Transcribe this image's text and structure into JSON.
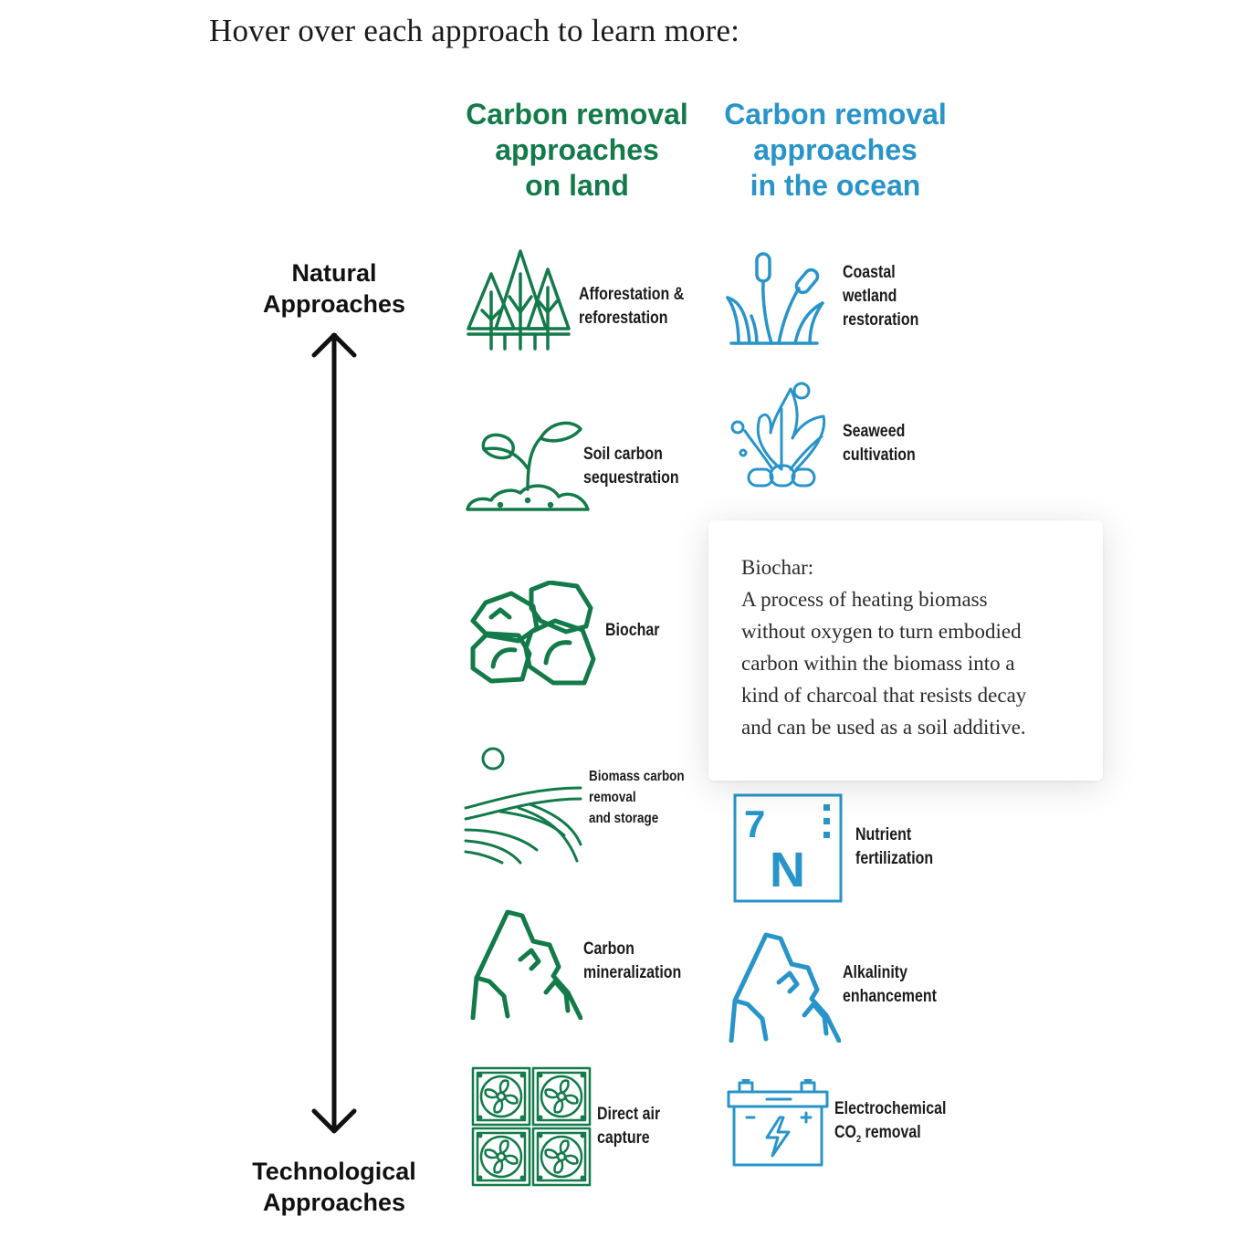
{
  "intro": "Hover over each approach to learn more:",
  "headers": {
    "land": [
      "Carbon removal",
      "approaches",
      "on land"
    ],
    "ocean": [
      "Carbon removal",
      "approaches",
      "in the ocean"
    ]
  },
  "axis": {
    "top": [
      "Natural",
      "Approaches"
    ],
    "bottom": [
      "Technological",
      "Approaches"
    ]
  },
  "colors": {
    "land": "#137a4a",
    "ocean": "#2894c9",
    "text": "#1b1b1b"
  },
  "land": [
    {
      "icon": "trees-icon",
      "label": [
        "Afforestation &",
        "reforestation"
      ]
    },
    {
      "icon": "sprout-icon",
      "label": [
        "Soil carbon",
        "sequestration"
      ]
    },
    {
      "icon": "biochar-rocks-icon",
      "label": [
        "Biochar"
      ]
    },
    {
      "icon": "fields-sun-icon",
      "label": [
        "Biomass carbon",
        "removal",
        "and storage"
      ]
    },
    {
      "icon": "mountain-icon",
      "label": [
        "Carbon",
        "mineralization"
      ]
    },
    {
      "icon": "fans-icon",
      "label": [
        "Direct air",
        "capture"
      ]
    }
  ],
  "ocean": [
    {
      "icon": "wetland-icon",
      "label": [
        "Coastal",
        "wetland",
        "restoration"
      ]
    },
    {
      "icon": "seaweed-icon",
      "label": [
        "Seaweed",
        "cultivation"
      ]
    },
    {
      "icon": "nitrogen-icon",
      "label": [
        "Nutrient",
        "fertilization"
      ],
      "symbol_number": "7",
      "symbol": "N"
    },
    {
      "icon": "mountain-icon",
      "label": [
        "Alkalinity",
        "enhancement"
      ]
    },
    {
      "icon": "battery-icon",
      "label": [
        "Electrochemical",
        "CO",
        "2",
        " removal"
      ]
    }
  ],
  "tooltip": {
    "title": "Biochar:",
    "lines": [
      "A process of heating biomass",
      "without oxygen to turn embodied",
      "carbon within the biomass into a",
      "kind of charcoal that resists decay",
      "and can be used as a soil additive."
    ]
  }
}
